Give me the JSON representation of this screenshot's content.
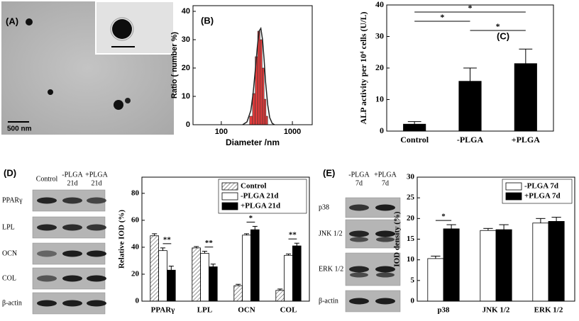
{
  "panel_a": {
    "label": "(A)",
    "scale_bar": "500 nm"
  },
  "blots": [
    {
      "label": "(D)",
      "columns": [
        [
          "Control"
        ],
        [
          "-PLGA",
          "21d"
        ],
        [
          "+PLGA",
          "21d"
        ]
      ],
      "rows": [
        "PPARγ",
        "LPL",
        "OCN",
        "COL",
        "β-actin"
      ]
    },
    {
      "label": "(E)",
      "columns": [
        [
          "-PLGA",
          "7d"
        ],
        [
          "+PLGA",
          "7d"
        ]
      ],
      "rows": [
        "p38",
        "JNK 1/2",
        "ERK 1/2",
        "β-actin"
      ]
    }
  ],
  "chart_data": [
    {
      "type": "histogram",
      "panel": "(B)",
      "y_label": "Ratio ( number %)",
      "x_label": "Diameter /nm",
      "x_log": true,
      "bins": [
        250,
        275,
        300,
        325,
        350,
        375,
        400,
        425,
        450
      ],
      "counts": [
        3,
        11,
        24,
        33,
        30,
        20,
        9,
        3
      ],
      "color": "#e23b3b",
      "line": {
        "x": [
          200,
          230,
          260,
          280,
          300,
          320,
          340,
          360,
          380,
          400,
          420,
          450,
          480,
          520,
          560
        ],
        "values": [
          0,
          1,
          5,
          11,
          19,
          27,
          33,
          34,
          30,
          23,
          15,
          7,
          2.5,
          0.5,
          0
        ],
        "color": "#222222"
      },
      "xlim": [
        40,
        1900
      ],
      "xticks": [
        100,
        1000
      ],
      "ylim": [
        0,
        42
      ],
      "yticks": [
        0,
        10,
        20,
        30,
        40
      ]
    },
    {
      "type": "bar",
      "panel": "(C)",
      "y_label": "ALP activity per 10⁴ cells (U/L)",
      "categories": [
        "Control",
        "-PLGA",
        "+PLGA"
      ],
      "values": [
        2.2,
        15.8,
        21.4
      ],
      "errors": [
        0.8,
        4.2,
        4.6
      ],
      "color": "#000000",
      "ylim": [
        0,
        40
      ],
      "yticks": [
        0,
        10,
        20,
        30,
        40
      ],
      "significance": [
        {
          "between": [
            "Control",
            "+PLGA"
          ],
          "label": "*"
        },
        {
          "between": [
            "Control",
            "-PLGA"
          ],
          "label": "*"
        },
        {
          "between": [
            "-PLGA",
            "+PLGA"
          ],
          "label": "*"
        }
      ]
    },
    {
      "type": "bar",
      "y_label": "Relative IOD (%)",
      "categories": [
        "PPARγ",
        "LPL",
        "OCN",
        "COL"
      ],
      "series": [
        {
          "name": "Control",
          "color": "#ffffff",
          "hatch": true,
          "values": [
            48.5,
            39.5,
            11.5,
            8
          ],
          "errors": [
            1.5,
            1,
            1,
            1
          ]
        },
        {
          "name": "-PLGA 21d",
          "color": "#ffffff",
          "values": [
            37.5,
            35.5,
            49,
            34
          ],
          "errors": [
            2,
            1.5,
            1,
            1
          ]
        },
        {
          "name": "+PLGA 21d",
          "color": "#000000",
          "values": [
            23,
            25.5,
            53,
            41
          ],
          "errors": [
            3,
            2,
            2.5,
            2
          ]
        }
      ],
      "ylim": [
        0,
        92
      ],
      "yticks": [
        0,
        20,
        40,
        60,
        80
      ],
      "legend": "upper right",
      "significance": [
        {
          "category": "PPARγ",
          "between": [
            "-PLGA 21d",
            "+PLGA 21d"
          ],
          "label": "**"
        },
        {
          "category": "LPL",
          "between": [
            "-PLGA 21d",
            "+PLGA 21d"
          ],
          "label": "**"
        },
        {
          "category": "OCN",
          "between": [
            "-PLGA 21d",
            "+PLGA 21d"
          ],
          "label": "*"
        },
        {
          "category": "COL",
          "between": [
            "-PLGA 21d",
            "+PLGA 21d"
          ],
          "label": "**"
        }
      ]
    },
    {
      "type": "bar",
      "y_label": "IOD density (%)",
      "categories": [
        "p38",
        "JNK 1/2",
        "ERK 1/2"
      ],
      "series": [
        {
          "name": "-PLGA 7d",
          "color": "#ffffff",
          "values": [
            10.3,
            17.1,
            18.9
          ],
          "errors": [
            0.6,
            0.5,
            1.1
          ]
        },
        {
          "name": "+PLGA 7d",
          "color": "#000000",
          "values": [
            17.5,
            17.3,
            19.3
          ],
          "errors": [
            1,
            1.2,
            1
          ]
        }
      ],
      "ylim": [
        0,
        30
      ],
      "yticks": [
        0,
        5,
        10,
        15,
        20,
        25,
        30
      ],
      "legend": "upper right",
      "significance": [
        {
          "category": "p38",
          "between": [
            "-PLGA 7d",
            "+PLGA 7d"
          ],
          "label": "*"
        }
      ]
    }
  ]
}
